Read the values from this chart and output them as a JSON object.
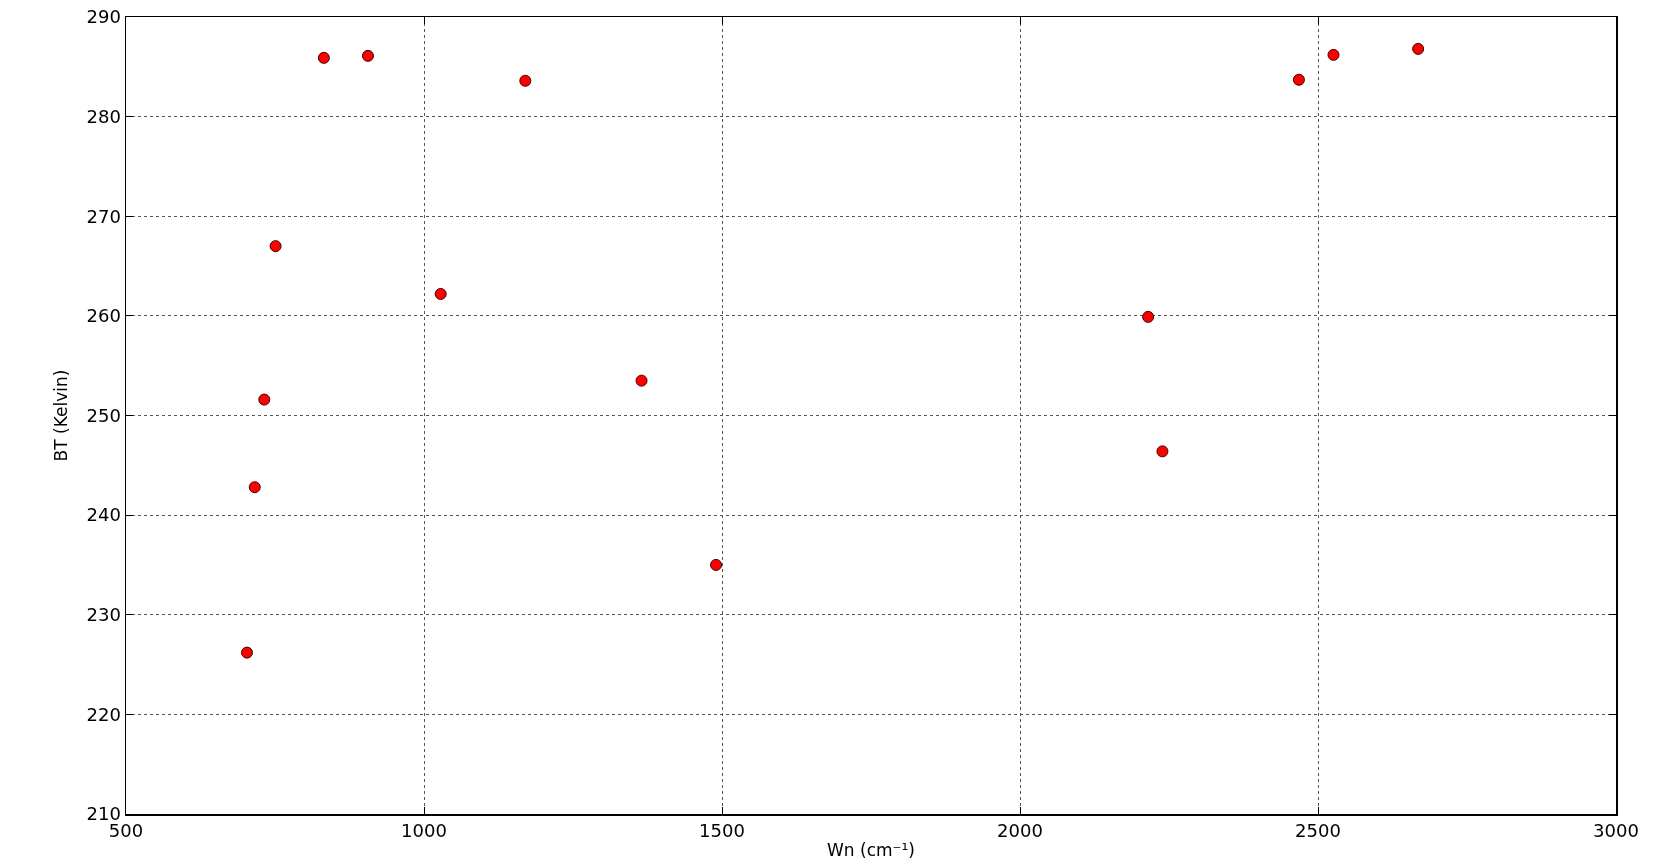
{
  "chart_data": {
    "type": "scatter",
    "xlabel": "Wn (cm⁻¹)",
    "ylabel": "BT (Kelvin)",
    "x": [
      703,
      716,
      732,
      751,
      832,
      906,
      1028,
      1170,
      1365,
      1490,
      2215,
      2239,
      2468,
      2526,
      2668
    ],
    "values": [
      226.2,
      242.8,
      251.6,
      267.0,
      285.9,
      286.1,
      262.2,
      283.6,
      253.5,
      235.0,
      259.9,
      246.4,
      283.7,
      286.2,
      286.8
    ],
    "color": "#ff0000",
    "marker": "circle",
    "xlim": [
      500,
      3000
    ],
    "xticks": [
      500,
      1000,
      1500,
      2000,
      2500,
      3000
    ],
    "ylim": [
      210,
      290
    ],
    "yticks": [
      210,
      220,
      230,
      240,
      250,
      260,
      270,
      280,
      290
    ],
    "grid": true
  }
}
